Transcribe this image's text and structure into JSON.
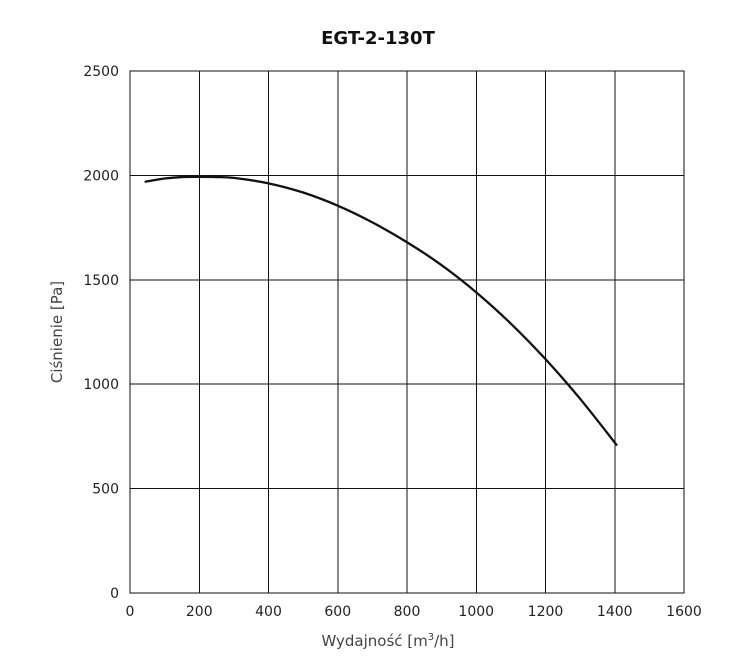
{
  "chart_data": {
    "type": "line",
    "title": "EGT-2-130T",
    "xlabel": {
      "prefix": "Wydajność [m",
      "superscript": "3",
      "suffix": "/h]"
    },
    "ylabel": "Ciśnienie [Pa]",
    "xlim": [
      0,
      1600
    ],
    "ylim": [
      0,
      2500
    ],
    "x_ticks": [
      0,
      200,
      400,
      600,
      800,
      1000,
      1200,
      1400,
      1600
    ],
    "y_ticks": [
      0,
      500,
      1000,
      1500,
      2000,
      2500
    ],
    "grid": true,
    "legend": "none",
    "colors": {
      "line": "#111111",
      "grid": "#111111",
      "text": "#222222",
      "axis_label": "#444444"
    },
    "series": [
      {
        "x": [
          45,
          100,
          150,
          200,
          250,
          300,
          400,
          500,
          600,
          700,
          800,
          900,
          1000,
          1100,
          1200,
          1300,
          1405
        ],
        "y": [
          1970,
          1985,
          1992,
          1993,
          1992,
          1988,
          1962,
          1918,
          1855,
          1775,
          1680,
          1570,
          1440,
          1290,
          1120,
          930,
          710
        ]
      }
    ]
  }
}
